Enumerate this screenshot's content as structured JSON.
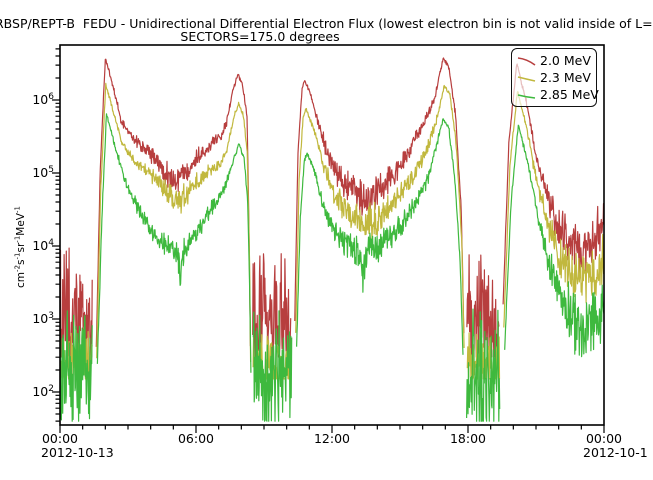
{
  "title": {
    "line1": "RBSP/REPT-B  FEDU - Unidirectional Differential Electron Flux (lowest electron bin is not valid inside of L=",
    "line2": "SECTORS=175.0 degrees"
  },
  "chart_data": {
    "type": "line",
    "title": "RBSP/REPT-B  FEDU - Unidirectional Differential Electron Flux (lowest electron bin is not valid inside of L=",
    "subtitle": "SECTORS=175.0 degrees",
    "x_axis": {
      "kind": "time",
      "range_hours": [
        0,
        24
      ],
      "tick_hours": [
        0,
        6,
        12,
        18,
        24
      ],
      "tick_labels": [
        "00:00",
        "06:00",
        "12:00",
        "18:00",
        "00:00"
      ],
      "minor_tick_step_hours": 1,
      "date_labels": [
        "2012-10-13",
        "2012-10-1"
      ]
    },
    "y_axis": {
      "kind": "log",
      "log10_range": [
        1.548,
        6.753
      ],
      "tick_exponents": [
        6,
        5,
        4,
        3,
        2
      ],
      "unit_segments": [
        [
          "cm",
          "-2"
        ],
        [
          "s",
          "-1"
        ],
        [
          "sr",
          "-1"
        ],
        [
          "MeV",
          "-1"
        ]
      ]
    },
    "legend": {
      "position": "top-right",
      "entries": [
        "2.0 MeV",
        "2.3 MeV",
        "2.85 MeV"
      ]
    },
    "grid": false,
    "axis_color": "#000000",
    "note": "points are [hour, log10(flux cm-2 s-1 sr-1 MeV-1), noise_amplitude_decades, clamp_floor_log10]; null log10 = data gap",
    "series": [
      {
        "name": "2.0 MeV",
        "color": "#b73e3e",
        "points": [
          [
            0.0,
            2.9,
            0.85,
            2.48
          ],
          [
            1.42,
            2.9,
            0.85,
            2.48
          ],
          [
            1.45,
            null
          ],
          [
            1.6,
            2.6,
            0.05,
            null
          ],
          [
            1.78,
            5.1,
            0.04,
            null
          ],
          [
            2.0,
            6.57,
            0.02,
            null
          ],
          [
            2.25,
            6.3,
            0.03,
            null
          ],
          [
            2.7,
            5.7,
            0.05,
            null
          ],
          [
            3.3,
            5.45,
            0.07,
            null
          ],
          [
            3.9,
            5.3,
            0.09,
            null
          ],
          [
            4.4,
            5.1,
            0.12,
            null
          ],
          [
            4.8,
            4.95,
            0.15,
            null
          ],
          [
            5.1,
            4.87,
            0.17,
            null
          ],
          [
            5.45,
            5.0,
            0.13,
            null
          ],
          [
            6.0,
            5.2,
            0.1,
            null
          ],
          [
            6.6,
            5.38,
            0.08,
            null
          ],
          [
            7.1,
            5.52,
            0.06,
            null
          ],
          [
            7.35,
            5.7,
            0.05,
            null
          ],
          [
            7.6,
            6.1,
            0.03,
            null
          ],
          [
            7.85,
            6.36,
            0.02,
            null
          ],
          [
            8.05,
            6.2,
            0.03,
            null
          ],
          [
            8.25,
            5.8,
            0.04,
            null
          ],
          [
            8.34,
            4.2,
            0.03,
            null
          ],
          [
            8.4,
            2.6,
            0.03,
            null
          ],
          [
            8.43,
            null
          ],
          [
            8.5,
            2.9,
            0.85,
            2.48
          ],
          [
            10.18,
            2.9,
            0.85,
            2.48
          ],
          [
            10.22,
            null
          ],
          [
            10.36,
            3.0,
            0.04,
            null
          ],
          [
            10.5,
            5.3,
            0.03,
            null
          ],
          [
            10.68,
            6.15,
            0.02,
            null
          ],
          [
            10.8,
            6.27,
            0.02,
            null
          ],
          [
            11.1,
            6.05,
            0.04,
            null
          ],
          [
            11.5,
            5.55,
            0.08,
            null
          ],
          [
            12.0,
            5.1,
            0.13,
            null
          ],
          [
            12.5,
            4.85,
            0.17,
            null
          ],
          [
            13.0,
            4.72,
            0.2,
            null
          ],
          [
            13.4,
            4.6,
            0.24,
            null
          ],
          [
            13.8,
            4.7,
            0.2,
            null
          ],
          [
            14.3,
            4.85,
            0.16,
            null
          ],
          [
            14.9,
            5.05,
            0.13,
            null
          ],
          [
            15.5,
            5.35,
            0.1,
            null
          ],
          [
            16.1,
            5.7,
            0.07,
            null
          ],
          [
            16.55,
            6.05,
            0.04,
            null
          ],
          [
            16.9,
            6.57,
            0.02,
            null
          ],
          [
            17.15,
            6.45,
            0.03,
            null
          ],
          [
            17.45,
            5.8,
            0.04,
            null
          ],
          [
            17.7,
            4.5,
            0.03,
            null
          ],
          [
            17.82,
            2.8,
            0.03,
            null
          ],
          [
            17.86,
            null
          ],
          [
            17.95,
            2.9,
            0.85,
            2.48
          ],
          [
            19.38,
            2.9,
            0.85,
            2.48
          ],
          [
            19.42,
            null
          ],
          [
            19.55,
            3.2,
            0.04,
            null
          ],
          [
            19.8,
            5.4,
            0.03,
            null
          ],
          [
            20.15,
            6.5,
            0.02,
            null
          ],
          [
            20.55,
            6.0,
            0.04,
            null
          ],
          [
            21.0,
            5.25,
            0.09,
            null
          ],
          [
            21.5,
            4.65,
            0.16,
            null
          ],
          [
            22.0,
            4.25,
            0.24,
            null
          ],
          [
            22.5,
            4.05,
            0.28,
            null
          ],
          [
            23.0,
            3.97,
            0.3,
            null
          ],
          [
            23.5,
            4.05,
            0.3,
            null
          ],
          [
            24.0,
            4.28,
            0.28,
            null
          ]
        ]
      },
      {
        "name": "2.3 MeV",
        "color": "#c1b83e",
        "points": [
          [
            0.0,
            2.3,
            0.45,
            2.18
          ],
          [
            1.42,
            2.3,
            0.45,
            2.18
          ],
          [
            1.45,
            null
          ],
          [
            1.62,
            2.5,
            0.05,
            null
          ],
          [
            1.8,
            4.8,
            0.04,
            null
          ],
          [
            2.02,
            6.22,
            0.02,
            null
          ],
          [
            2.3,
            5.9,
            0.03,
            null
          ],
          [
            2.75,
            5.4,
            0.05,
            null
          ],
          [
            3.35,
            5.15,
            0.07,
            null
          ],
          [
            3.95,
            5.0,
            0.09,
            null
          ],
          [
            4.45,
            4.85,
            0.12,
            null
          ],
          [
            4.85,
            4.68,
            0.15,
            null
          ],
          [
            5.15,
            4.55,
            0.2,
            null
          ],
          [
            5.5,
            4.68,
            0.14,
            null
          ],
          [
            6.05,
            4.88,
            0.11,
            null
          ],
          [
            6.65,
            5.02,
            0.08,
            null
          ],
          [
            7.15,
            5.15,
            0.06,
            null
          ],
          [
            7.4,
            5.35,
            0.05,
            null
          ],
          [
            7.65,
            5.75,
            0.03,
            null
          ],
          [
            7.88,
            5.95,
            0.02,
            null
          ],
          [
            8.08,
            5.8,
            0.03,
            null
          ],
          [
            8.26,
            5.3,
            0.04,
            null
          ],
          [
            8.36,
            3.8,
            0.03,
            null
          ],
          [
            8.41,
            2.4,
            0.03,
            null
          ],
          [
            8.44,
            null
          ],
          [
            8.52,
            2.3,
            0.45,
            2.18
          ],
          [
            10.2,
            2.3,
            0.45,
            2.18
          ],
          [
            10.24,
            null
          ],
          [
            10.4,
            2.8,
            0.04,
            null
          ],
          [
            10.55,
            4.9,
            0.03,
            null
          ],
          [
            10.72,
            5.75,
            0.02,
            null
          ],
          [
            10.85,
            5.88,
            0.02,
            null
          ],
          [
            11.2,
            5.6,
            0.04,
            null
          ],
          [
            11.6,
            5.15,
            0.09,
            null
          ],
          [
            12.1,
            4.72,
            0.14,
            null
          ],
          [
            12.6,
            4.48,
            0.18,
            null
          ],
          [
            13.1,
            4.35,
            0.22,
            null
          ],
          [
            13.5,
            4.25,
            0.25,
            null
          ],
          [
            13.9,
            4.35,
            0.21,
            null
          ],
          [
            14.4,
            4.5,
            0.17,
            null
          ],
          [
            15.0,
            4.7,
            0.14,
            null
          ],
          [
            15.6,
            4.95,
            0.11,
            null
          ],
          [
            16.15,
            5.3,
            0.08,
            null
          ],
          [
            16.6,
            5.7,
            0.05,
            null
          ],
          [
            16.95,
            6.2,
            0.02,
            null
          ],
          [
            17.2,
            6.08,
            0.03,
            null
          ],
          [
            17.48,
            5.4,
            0.04,
            null
          ],
          [
            17.72,
            4.1,
            0.03,
            null
          ],
          [
            17.83,
            2.6,
            0.03,
            null
          ],
          [
            17.87,
            null
          ],
          [
            17.97,
            2.3,
            0.45,
            2.18
          ],
          [
            19.39,
            2.3,
            0.45,
            2.18
          ],
          [
            19.43,
            null
          ],
          [
            19.58,
            2.9,
            0.04,
            null
          ],
          [
            19.85,
            5.1,
            0.03,
            null
          ],
          [
            20.18,
            6.13,
            0.02,
            null
          ],
          [
            20.6,
            5.6,
            0.04,
            null
          ],
          [
            21.05,
            4.85,
            0.1,
            null
          ],
          [
            21.55,
            4.25,
            0.17,
            null
          ],
          [
            22.05,
            3.85,
            0.25,
            null
          ],
          [
            22.55,
            3.62,
            0.3,
            null
          ],
          [
            23.05,
            3.52,
            0.32,
            null
          ],
          [
            23.55,
            3.58,
            0.32,
            null
          ],
          [
            24.0,
            3.82,
            0.3,
            null
          ]
        ]
      },
      {
        "name": "2.85 MeV",
        "color": "#3eb93e",
        "points": [
          [
            0.0,
            2.25,
            0.7,
            1.6
          ],
          [
            1.42,
            2.25,
            0.7,
            1.6
          ],
          [
            1.45,
            null
          ],
          [
            1.65,
            2.4,
            0.06,
            null
          ],
          [
            1.85,
            4.4,
            0.05,
            null
          ],
          [
            2.05,
            5.81,
            0.02,
            null
          ],
          [
            2.4,
            5.4,
            0.04,
            null
          ],
          [
            2.85,
            4.9,
            0.06,
            null
          ],
          [
            3.45,
            4.5,
            0.08,
            null
          ],
          [
            4.05,
            4.2,
            0.1,
            null
          ],
          [
            4.55,
            4.05,
            0.13,
            null
          ],
          [
            4.95,
            3.97,
            0.15,
            null
          ],
          [
            5.18,
            3.85,
            0.2,
            null
          ],
          [
            5.28,
            3.55,
            0.25,
            null
          ],
          [
            5.38,
            3.85,
            0.2,
            null
          ],
          [
            5.65,
            4.02,
            0.14,
            null
          ],
          [
            6.25,
            4.3,
            0.11,
            null
          ],
          [
            6.85,
            4.6,
            0.08,
            null
          ],
          [
            7.25,
            4.8,
            0.06,
            null
          ],
          [
            7.58,
            5.1,
            0.04,
            null
          ],
          [
            7.9,
            5.4,
            0.03,
            null
          ],
          [
            8.12,
            5.2,
            0.03,
            null
          ],
          [
            8.28,
            4.6,
            0.04,
            null
          ],
          [
            8.37,
            3.4,
            0.04,
            null
          ],
          [
            8.42,
            2.3,
            0.04,
            null
          ],
          [
            8.45,
            null
          ],
          [
            8.53,
            2.25,
            0.7,
            1.6
          ],
          [
            10.22,
            2.25,
            0.7,
            1.6
          ],
          [
            10.26,
            null
          ],
          [
            10.44,
            2.6,
            0.05,
            null
          ],
          [
            10.6,
            4.4,
            0.04,
            null
          ],
          [
            10.78,
            5.15,
            0.03,
            null
          ],
          [
            10.9,
            5.28,
            0.02,
            null
          ],
          [
            11.3,
            4.95,
            0.05,
            null
          ],
          [
            11.7,
            4.45,
            0.1,
            null
          ],
          [
            12.2,
            4.12,
            0.16,
            null
          ],
          [
            12.7,
            3.98,
            0.19,
            null
          ],
          [
            13.1,
            3.92,
            0.22,
            null
          ],
          [
            13.42,
            3.65,
            0.3,
            null
          ],
          [
            13.55,
            3.9,
            0.24,
            null
          ],
          [
            13.95,
            4.0,
            0.2,
            null
          ],
          [
            14.5,
            4.12,
            0.17,
            null
          ],
          [
            15.1,
            4.32,
            0.14,
            null
          ],
          [
            15.75,
            4.62,
            0.11,
            null
          ],
          [
            16.25,
            4.95,
            0.08,
            null
          ],
          [
            16.9,
            5.74,
            0.02,
            null
          ],
          [
            17.15,
            5.62,
            0.03,
            null
          ],
          [
            17.42,
            4.9,
            0.04,
            null
          ],
          [
            17.65,
            3.8,
            0.04,
            null
          ],
          [
            17.78,
            2.5,
            0.04,
            null
          ],
          [
            17.82,
            null
          ],
          [
            17.94,
            2.25,
            0.7,
            1.6
          ],
          [
            19.4,
            2.25,
            0.7,
            1.6
          ],
          [
            19.44,
            null
          ],
          [
            19.62,
            2.6,
            0.05,
            null
          ],
          [
            19.9,
            4.6,
            0.04,
            null
          ],
          [
            20.22,
            5.66,
            0.02,
            null
          ],
          [
            20.7,
            5.05,
            0.05,
            null
          ],
          [
            21.15,
            4.3,
            0.1,
            null
          ],
          [
            21.65,
            3.7,
            0.18,
            null
          ],
          [
            22.15,
            3.25,
            0.28,
            null
          ],
          [
            22.65,
            3.0,
            0.36,
            null
          ],
          [
            23.15,
            2.88,
            0.4,
            null
          ],
          [
            23.6,
            2.92,
            0.4,
            null
          ],
          [
            24.0,
            3.1,
            0.36,
            null
          ]
        ]
      }
    ]
  }
}
